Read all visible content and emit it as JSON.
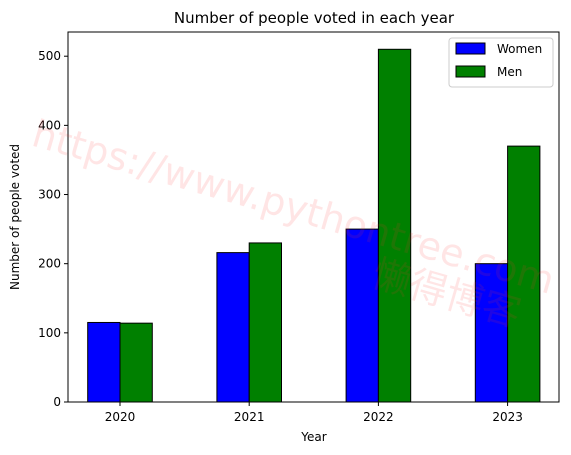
{
  "chart_data": {
    "type": "bar",
    "title": "Number of people voted in each year",
    "xlabel": "Year",
    "ylabel": "Number of people voted",
    "categories": [
      "2020",
      "2021",
      "2022",
      "2023"
    ],
    "series": [
      {
        "name": "Women",
        "values": [
          115,
          216,
          250,
          200
        ],
        "color": "#0000ff"
      },
      {
        "name": "Men",
        "values": [
          114,
          230,
          510,
          370
        ],
        "color": "#008000"
      }
    ],
    "ylim": [
      0,
      535
    ],
    "yticks": [
      0,
      100,
      200,
      300,
      400,
      500
    ],
    "grid": false,
    "legend_position": "top-right"
  },
  "watermark": {
    "url": "https://www.pythontree.com",
    "text": "懒得博客"
  }
}
